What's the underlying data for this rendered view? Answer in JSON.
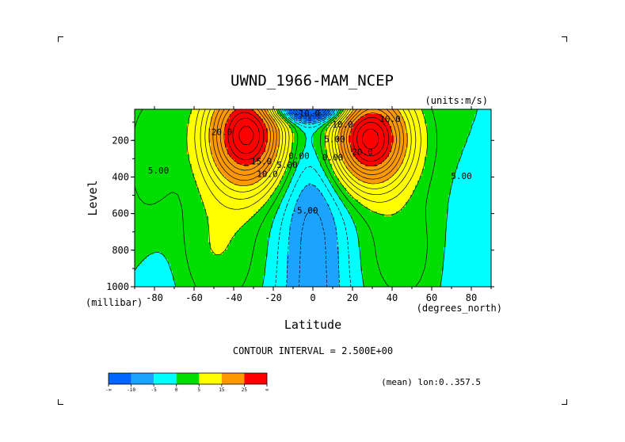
{
  "chart_data": {
    "type": "heatmap",
    "plot_kind": "filled-contour",
    "title": "UWND_1966-MAM_NCEP",
    "units_label": "(units:m/s)",
    "xlabel": "Latitude",
    "x_units": "(degrees_north)",
    "ylabel": "Level",
    "y_units": "(millibar)",
    "x_ticks": [
      "-80",
      "-60",
      "-40",
      "-20",
      "0",
      "20",
      "40",
      "60",
      "80"
    ],
    "y_ticks": [
      "200",
      "400",
      "600",
      "800",
      "1000"
    ],
    "xlim": [
      -90,
      90
    ],
    "ylim": [
      1000,
      30
    ],
    "y_reversed": true,
    "contour_interval_text": "CONTOUR INTERVAL = 2.500E+00",
    "mean_text": "(mean) lon:0..357.5",
    "contour_labels": [
      {
        "text": "20.0",
        "lat": -46,
        "level": 170
      },
      {
        "text": "15.0",
        "lat": -26,
        "level": 330
      },
      {
        "text": "10.0",
        "lat": -23,
        "level": 400
      },
      {
        "text": "5.00",
        "lat": -78,
        "level": 380
      },
      {
        "text": "5.00",
        "lat": -13,
        "level": 350
      },
      {
        "text": "0.00",
        "lat": -7,
        "level": 300
      },
      {
        "text": "-5.00",
        "lat": -4,
        "level": 600
      },
      {
        "text": "-10.0",
        "lat": -3,
        "level": 70
      },
      {
        "text": "0.00",
        "lat": 10,
        "level": 310
      },
      {
        "text": "5.00",
        "lat": 11,
        "level": 210
      },
      {
        "text": "10.0",
        "lat": 15,
        "level": 130
      },
      {
        "text": "10.0",
        "lat": 39,
        "level": 100
      },
      {
        "text": "20.0",
        "lat": 25,
        "level": 280
      },
      {
        "text": "5.00",
        "lat": 75,
        "level": 410
      }
    ],
    "jets": [
      {
        "name_hint": "southern",
        "lat": -33,
        "level": 170,
        "peak": 34
      },
      {
        "name_hint": "northern",
        "lat": 28,
        "level": 190,
        "peak": 35
      }
    ],
    "colorbar": {
      "labels": [
        "-∞",
        "-10",
        "-5",
        "0",
        "5",
        "15",
        "25",
        "∞"
      ],
      "colors": [
        "#0066ff",
        "#1aa3ff",
        "#00ffff",
        "#00dd00",
        "#ffff00",
        "#ff9900",
        "#ff0000"
      ]
    }
  }
}
